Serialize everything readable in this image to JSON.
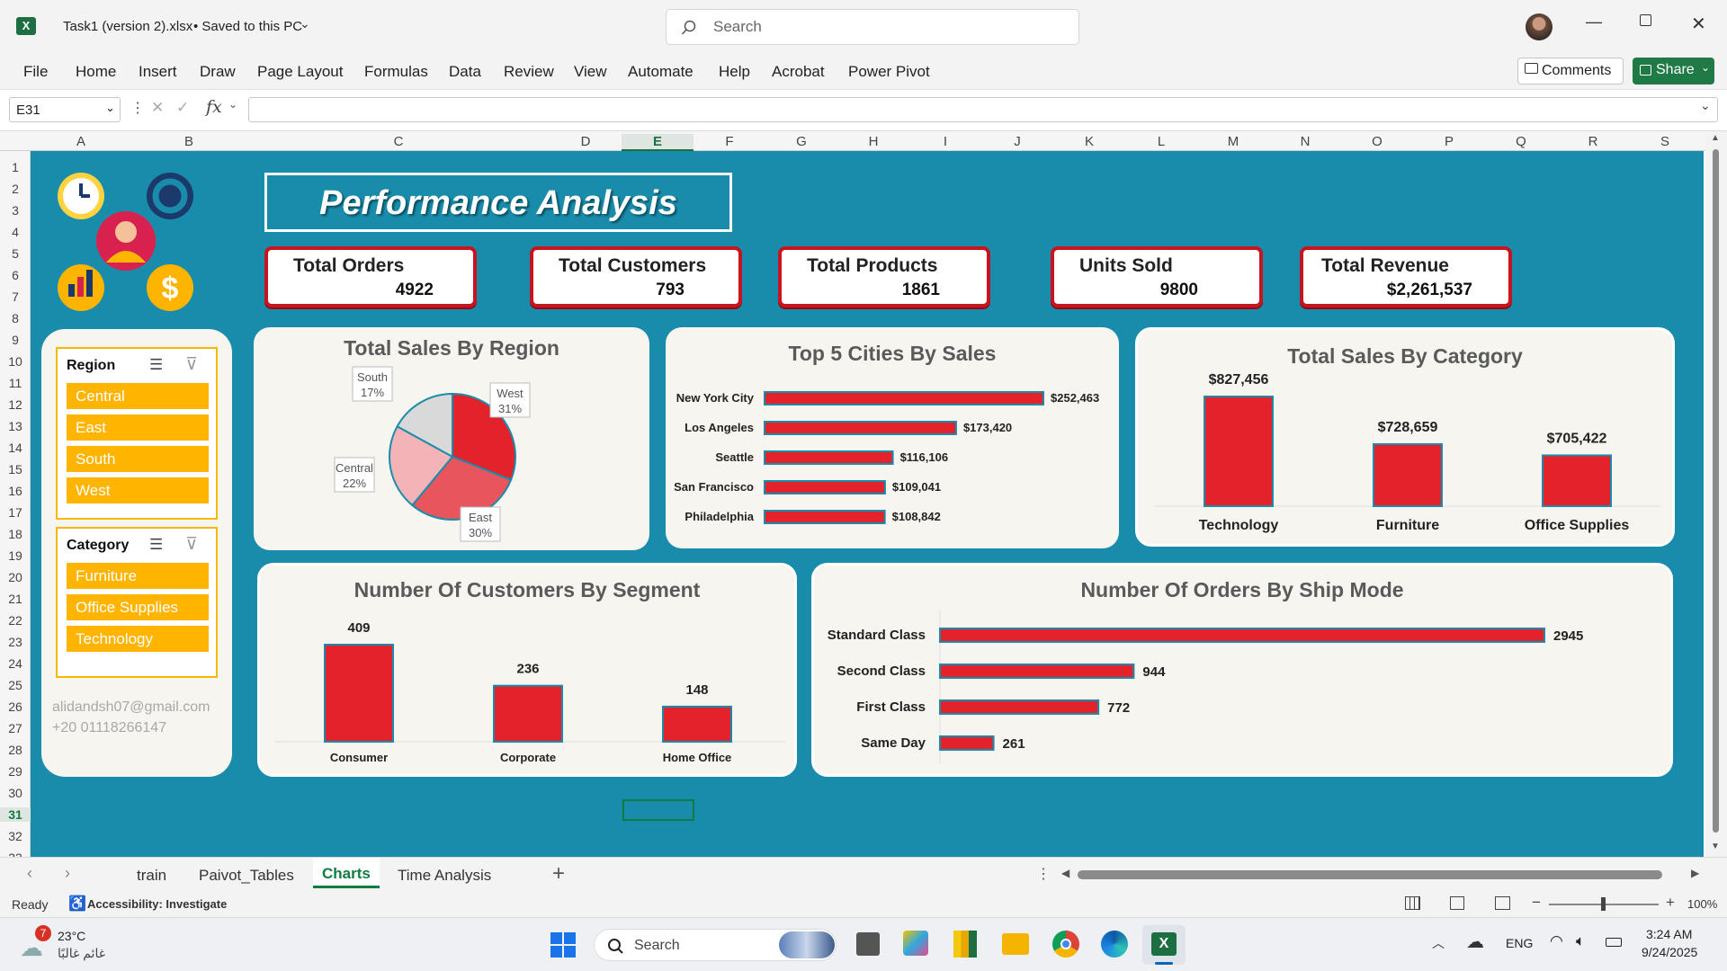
{
  "window": {
    "file_name": "Task1 (version 2).xlsx",
    "save_status": "• Saved to this PC",
    "search_placeholder": "Search"
  },
  "ribbon": {
    "tabs": [
      "File",
      "Home",
      "Insert",
      "Draw",
      "Page Layout",
      "Formulas",
      "Data",
      "Review",
      "View",
      "Automate",
      "Help",
      "Acrobat",
      "Power Pivot"
    ],
    "comments_label": "Comments",
    "share_label": "Share"
  },
  "formula_bar": {
    "name_box": "E31",
    "fx_label": "fx",
    "formula": ""
  },
  "grid": {
    "columns": [
      "A",
      "B",
      "C",
      "D",
      "E",
      "F",
      "G",
      "H",
      "I",
      "J",
      "K",
      "L",
      "M",
      "N",
      "O",
      "P",
      "Q",
      "R",
      "S"
    ],
    "rows": [
      "1",
      "2",
      "3",
      "4",
      "5",
      "6",
      "7",
      "8",
      "9",
      "10",
      "11",
      "12",
      "13",
      "14",
      "15",
      "16",
      "17",
      "18",
      "19",
      "20",
      "21",
      "22",
      "23",
      "24",
      "25",
      "26",
      "27",
      "28",
      "29",
      "30",
      "31",
      "32",
      "33"
    ],
    "selected_column": "E",
    "selected_row": "31"
  },
  "dashboard": {
    "title": "Performance Analysis",
    "kpis": [
      {
        "label": "Total Orders",
        "value": "4922"
      },
      {
        "label": "Total Customers",
        "value": "793"
      },
      {
        "label": "Total Products",
        "value": "1861"
      },
      {
        "label": "Units Sold",
        "value": "9800"
      },
      {
        "label": "Total Revenue",
        "value": "$2,261,537"
      }
    ],
    "slicers": {
      "region": {
        "title": "Region",
        "items": [
          "Central",
          "East",
          "South",
          "West"
        ]
      },
      "category": {
        "title": "Category",
        "items": [
          "Furniture",
          "Office Supplies",
          "Technology"
        ]
      }
    },
    "contact": {
      "email": "alidandsh07@gmail.com",
      "phone": "+20 01118266147"
    },
    "colors": {
      "accent": "#e3222c",
      "teal": "#1a8cab",
      "slicer": "#ffb400"
    }
  },
  "chart_data": [
    {
      "type": "pie",
      "title": "Total Sales By Region",
      "labels": [
        "West",
        "East",
        "Central",
        "South"
      ],
      "values": [
        31,
        30,
        22,
        17
      ],
      "value_labels": [
        "31%",
        "30%",
        "22%",
        "17%"
      ],
      "colors": [
        "#e3222c",
        "#e8555c",
        "#f3b4b7",
        "#d9d9d9"
      ]
    },
    {
      "type": "bar",
      "orientation": "horizontal",
      "title": "Top 5 Cities By Sales",
      "categories": [
        "New York City",
        "Los Angeles",
        "Seattle",
        "San Francisco",
        "Philadelphia"
      ],
      "values": [
        252463,
        173420,
        116106,
        109041,
        108842
      ],
      "value_labels": [
        "$252,463",
        "$173,420",
        "$116,106",
        "$109,041",
        "$108,842"
      ]
    },
    {
      "type": "bar",
      "title": "Total Sales By Category",
      "categories": [
        "Technology",
        "Furniture",
        "Office Supplies"
      ],
      "values": [
        827456,
        728659,
        705422
      ],
      "value_labels": [
        "$827,456",
        "$728,659",
        "$705,422"
      ]
    },
    {
      "type": "bar",
      "title": "Number Of Customers By Segment",
      "categories": [
        "Consumer",
        "Corporate",
        "Home Office"
      ],
      "values": [
        409,
        236,
        148
      ],
      "value_labels": [
        "409",
        "236",
        "148"
      ]
    },
    {
      "type": "bar",
      "orientation": "horizontal",
      "title": "Number Of Orders By Ship Mode",
      "categories": [
        "Standard Class",
        "Second Class",
        "First Class",
        "Same Day"
      ],
      "values": [
        2945,
        944,
        772,
        261
      ],
      "value_labels": [
        "2945",
        "944",
        "772",
        "261"
      ]
    }
  ],
  "sheet_tabs": [
    "train",
    "Paivot_Tables",
    "Charts",
    "Time Analysis"
  ],
  "active_sheet": "Charts",
  "status_bar": {
    "ready": "Ready",
    "accessibility": "Accessibility: Investigate",
    "zoom": "100%"
  },
  "taskbar": {
    "weather_temp": "23°C",
    "weather_desc": "غائم غالبًا",
    "weather_badge": "7",
    "search_label": "Search",
    "lang": "ENG",
    "time": "3:24 AM",
    "date": "9/24/2025"
  }
}
